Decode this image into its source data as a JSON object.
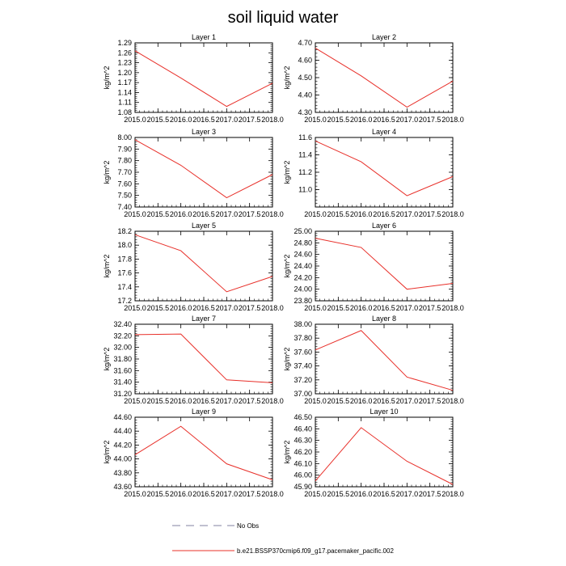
{
  "figure": {
    "title": "soil liquid water"
  },
  "legend": [
    {
      "label": "No Obs",
      "style": "dashed",
      "color": "#8080a0"
    },
    {
      "label": "b.e21.BSSP370cmip6.f09_g17.pacemaker_pacific.002",
      "style": "solid",
      "color": "#e8302a"
    }
  ],
  "colors": {
    "line": "#e8302a",
    "axis": "#000000"
  },
  "chart_data": [
    {
      "type": "line",
      "title": "Layer 1",
      "ylabel": "kg/m^2",
      "x": [
        2015,
        2016,
        2017,
        2018
      ],
      "values": [
        1.266,
        1.184,
        1.098,
        1.168
      ],
      "xlim": [
        2015,
        2018
      ],
      "ylim": [
        1.08,
        1.29
      ],
      "xticks": [
        "2015.0",
        "2015.5",
        "2016.0",
        "2016.5",
        "2017.0",
        "2017.5",
        "2018.0"
      ],
      "yticks": [
        "1.08",
        "1.11",
        "1.14",
        "1.17",
        "1.20",
        "1.23",
        "1.26",
        "1.29"
      ]
    },
    {
      "type": "line",
      "title": "Layer 2",
      "ylabel": "kg/m^2",
      "x": [
        2015,
        2016,
        2017,
        2018
      ],
      "values": [
        4.67,
        4.51,
        4.33,
        4.48
      ],
      "xlim": [
        2015,
        2018
      ],
      "ylim": [
        4.3,
        4.7
      ],
      "xticks": [
        "2015.0",
        "2015.5",
        "2016.0",
        "2016.5",
        "2017.0",
        "2017.5",
        "2018.0"
      ],
      "yticks": [
        "4.30",
        "4.40",
        "4.50",
        "4.60",
        "4.70"
      ]
    },
    {
      "type": "line",
      "title": "Layer 3",
      "ylabel": "kg/m^2",
      "x": [
        2015,
        2016,
        2017,
        2018
      ],
      "values": [
        7.98,
        7.76,
        7.48,
        7.68
      ],
      "xlim": [
        2015,
        2018
      ],
      "ylim": [
        7.4,
        8.0
      ],
      "xticks": [
        "2015.0",
        "2015.5",
        "2016.0",
        "2016.5",
        "2017.0",
        "2017.5",
        "2018.0"
      ],
      "yticks": [
        "7.40",
        "7.50",
        "7.60",
        "7.70",
        "7.80",
        "7.90",
        "8.00"
      ]
    },
    {
      "type": "line",
      "title": "Layer 4",
      "ylabel": "kg/m^2",
      "x": [
        2015,
        2016,
        2017,
        2018
      ],
      "values": [
        11.56,
        11.32,
        10.93,
        11.15
      ],
      "xlim": [
        2015,
        2018
      ],
      "ylim": [
        10.8,
        11.6
      ],
      "xticks": [
        "2015.0",
        "2015.5",
        "2016.0",
        "2016.5",
        "2017.0",
        "2017.5",
        "2018.0"
      ],
      "yticks": [
        "11.0",
        "11.2",
        "11.4",
        "11.6"
      ]
    },
    {
      "type": "line",
      "title": "Layer 5",
      "ylabel": "kg/m^2",
      "x": [
        2015,
        2016,
        2017,
        2018
      ],
      "values": [
        18.15,
        17.92,
        17.33,
        17.55
      ],
      "xlim": [
        2015,
        2018
      ],
      "ylim": [
        17.2,
        18.2
      ],
      "xticks": [
        "2015.0",
        "2015.5",
        "2016.0",
        "2016.5",
        "2017.0",
        "2017.5",
        "2018.0"
      ],
      "yticks": [
        "17.2",
        "17.4",
        "17.6",
        "17.8",
        "18.0",
        "18.2"
      ]
    },
    {
      "type": "line",
      "title": "Layer 6",
      "ylabel": "kg/m^2",
      "x": [
        2015,
        2016,
        2017,
        2018
      ],
      "values": [
        24.88,
        24.72,
        24.0,
        24.1
      ],
      "xlim": [
        2015,
        2018
      ],
      "ylim": [
        23.8,
        25.0
      ],
      "xticks": [
        "2015.0",
        "2015.5",
        "2016.0",
        "2016.5",
        "2017.0",
        "2017.5",
        "2018.0"
      ],
      "yticks": [
        "23.80",
        "24.00",
        "24.20",
        "24.40",
        "24.60",
        "24.80",
        "25.00"
      ]
    },
    {
      "type": "line",
      "title": "Layer 7",
      "ylabel": "kg/m^2",
      "x": [
        2015,
        2016,
        2017,
        2018
      ],
      "values": [
        32.22,
        32.23,
        31.44,
        31.39
      ],
      "xlim": [
        2015,
        2018
      ],
      "ylim": [
        31.2,
        32.4
      ],
      "xticks": [
        "2015.0",
        "2015.5",
        "2016.0",
        "2016.5",
        "2017.0",
        "2017.5",
        "2018.0"
      ],
      "yticks": [
        "31.20",
        "31.40",
        "31.60",
        "31.80",
        "32.00",
        "32.20",
        "32.40"
      ]
    },
    {
      "type": "line",
      "title": "Layer 8",
      "ylabel": "kg/m^2",
      "x": [
        2015,
        2016,
        2017,
        2018
      ],
      "values": [
        37.63,
        37.91,
        37.24,
        37.05
      ],
      "xlim": [
        2015,
        2018
      ],
      "ylim": [
        37.0,
        38.0
      ],
      "xticks": [
        "2015.0",
        "2015.5",
        "2016.0",
        "2016.5",
        "2017.0",
        "2017.5",
        "2018.0"
      ],
      "yticks": [
        "37.00",
        "37.20",
        "37.40",
        "37.60",
        "37.80",
        "38.00"
      ]
    },
    {
      "type": "line",
      "title": "Layer 9",
      "ylabel": "kg/m^2",
      "x": [
        2015,
        2016,
        2017,
        2018
      ],
      "values": [
        44.06,
        44.47,
        43.93,
        43.7
      ],
      "xlim": [
        2015,
        2018
      ],
      "ylim": [
        43.6,
        44.6
      ],
      "xticks": [
        "2015.0",
        "2015.5",
        "2016.0",
        "2016.5",
        "2017.0",
        "2017.5",
        "2018.0"
      ],
      "yticks": [
        "43.60",
        "43.80",
        "44.00",
        "44.20",
        "44.40",
        "44.60"
      ]
    },
    {
      "type": "line",
      "title": "Layer 10",
      "ylabel": "kg/m^2",
      "x": [
        2015,
        2016,
        2017,
        2018
      ],
      "values": [
        45.95,
        46.41,
        46.12,
        45.92
      ],
      "xlim": [
        2015,
        2018
      ],
      "ylim": [
        45.9,
        46.5
      ],
      "xticks": [
        "2015.0",
        "2015.5",
        "2016.0",
        "2016.5",
        "2017.0",
        "2017.5",
        "2018.0"
      ],
      "yticks": [
        "45.90",
        "46.00",
        "46.10",
        "46.20",
        "46.30",
        "46.40",
        "46.50"
      ]
    }
  ]
}
